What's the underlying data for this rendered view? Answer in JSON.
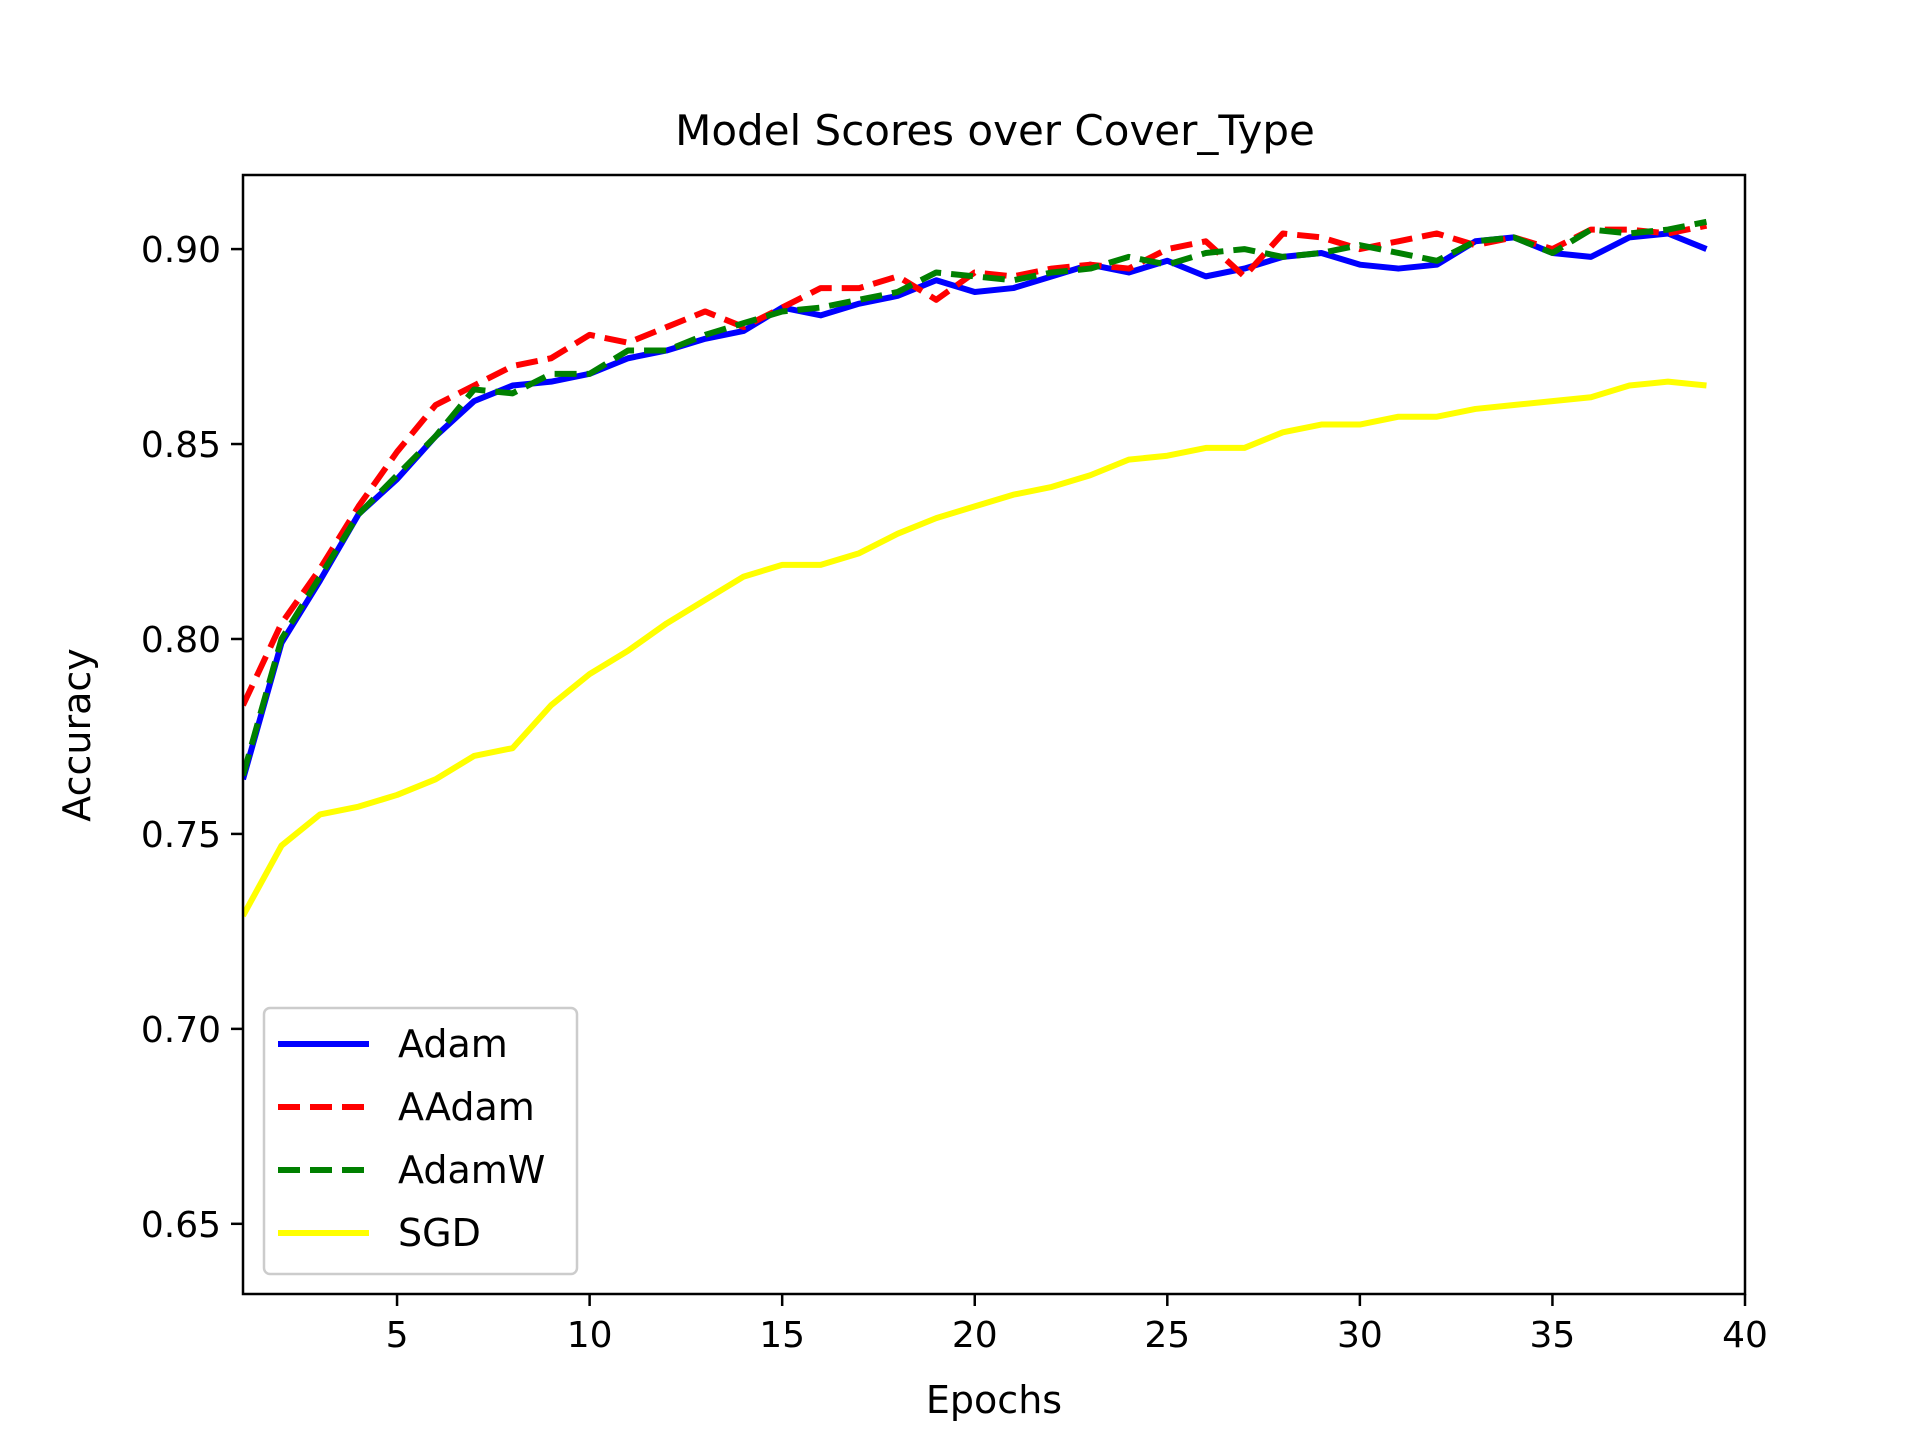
{
  "chart_data": {
    "type": "line",
    "title": "Model Scores over Cover_Type",
    "xlabel": "Epochs",
    "ylabel": "Accuracy",
    "xlim": [
      1,
      40
    ],
    "ylim": [
      0.632,
      0.919
    ],
    "xticks": [
      5,
      10,
      15,
      20,
      25,
      30,
      35,
      40
    ],
    "yticks": [
      0.65,
      0.7,
      0.75,
      0.8,
      0.85,
      0.9
    ],
    "xtick_labels": [
      "5",
      "10",
      "15",
      "20",
      "25",
      "30",
      "35",
      "40"
    ],
    "ytick_labels": [
      "0.65",
      "0.70",
      "0.75",
      "0.80",
      "0.85",
      "0.90"
    ],
    "grid": false,
    "legend_position": "lower-left",
    "x": [
      1,
      2,
      3,
      4,
      5,
      6,
      7,
      8,
      9,
      10,
      11,
      12,
      13,
      14,
      15,
      16,
      17,
      18,
      19,
      20,
      21,
      22,
      23,
      24,
      25,
      26,
      27,
      28,
      29,
      30,
      31,
      32,
      33,
      34,
      35,
      36,
      37,
      38,
      39
    ],
    "series": [
      {
        "name": "Adam",
        "color": "#0000ff",
        "style": "solid",
        "values": [
          0.764,
          0.799,
          0.815,
          0.832,
          0.841,
          0.852,
          0.861,
          0.865,
          0.866,
          0.868,
          0.872,
          0.874,
          0.877,
          0.879,
          0.885,
          0.883,
          0.886,
          0.888,
          0.892,
          0.889,
          0.89,
          0.893,
          0.896,
          0.894,
          0.897,
          0.893,
          0.895,
          0.898,
          0.899,
          0.896,
          0.895,
          0.896,
          0.902,
          0.903,
          0.899,
          0.898,
          0.903,
          0.904,
          0.9
        ]
      },
      {
        "name": "AAdam",
        "color": "#ff0000",
        "style": "dashed",
        "values": [
          0.783,
          0.804,
          0.818,
          0.834,
          0.848,
          0.86,
          0.865,
          0.87,
          0.872,
          0.878,
          0.876,
          0.88,
          0.884,
          0.88,
          0.885,
          0.89,
          0.89,
          0.893,
          0.887,
          0.894,
          0.893,
          0.895,
          0.896,
          0.895,
          0.9,
          0.902,
          0.893,
          0.904,
          0.903,
          0.9,
          0.902,
          0.904,
          0.901,
          0.903,
          0.9,
          0.905,
          0.905,
          0.904,
          0.906
        ]
      },
      {
        "name": "AdamW",
        "color": "#008000",
        "style": "dashed",
        "values": [
          0.765,
          0.8,
          0.816,
          0.832,
          0.842,
          0.852,
          0.864,
          0.863,
          0.868,
          0.868,
          0.874,
          0.874,
          0.878,
          0.881,
          0.884,
          0.885,
          0.887,
          0.889,
          0.894,
          0.893,
          0.892,
          0.894,
          0.895,
          0.898,
          0.896,
          0.899,
          0.9,
          0.898,
          0.899,
          0.901,
          0.899,
          0.897,
          0.902,
          0.903,
          0.899,
          0.905,
          0.904,
          0.905,
          0.907
        ]
      },
      {
        "name": "SGD",
        "color": "#ffff00",
        "style": "solid",
        "values": [
          0.729,
          0.747,
          0.755,
          0.757,
          0.76,
          0.764,
          0.77,
          0.772,
          0.783,
          0.791,
          0.797,
          0.804,
          0.81,
          0.816,
          0.819,
          0.819,
          0.822,
          0.827,
          0.831,
          0.834,
          0.837,
          0.839,
          0.842,
          0.846,
          0.847,
          0.849,
          0.849,
          0.853,
          0.855,
          0.855,
          0.857,
          0.857,
          0.859,
          0.86,
          0.861,
          0.862,
          0.865,
          0.866,
          0.865
        ]
      }
    ]
  }
}
